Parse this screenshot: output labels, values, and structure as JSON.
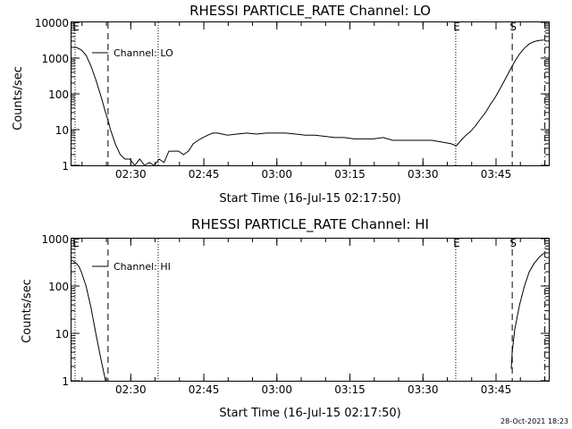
{
  "footer": "28-Oct-2021 18:23",
  "colors": {
    "background": "#ffffff",
    "foreground": "#000000"
  },
  "chart_data": [
    {
      "type": "line",
      "title": "RHESSI PARTICLE_RATE Channel: LO",
      "xlabel": "Start Time (16-Jul-15 02:17:50)",
      "ylabel": "Counts/sec",
      "y_scale": "log",
      "ylim": [
        1,
        10000
      ],
      "x_units": "minutes since 02:17:50",
      "xlim": [
        0,
        98
      ],
      "x_tick_labels": [
        "02:30",
        "02:45",
        "03:00",
        "03:15",
        "03:30",
        "03:45"
      ],
      "x_tick_values": [
        12.17,
        27.17,
        42.17,
        57.17,
        72.17,
        87.17
      ],
      "y_tick_labels": [
        "1",
        "10",
        "100",
        "1000",
        "10000"
      ],
      "y_tick_values": [
        1,
        10,
        100,
        1000,
        10000
      ],
      "grid": false,
      "legend_position": "top-left",
      "series": [
        {
          "name": "Channel: LO",
          "x": [
            0,
            1,
            2,
            3,
            4,
            5,
            6,
            7,
            7.5,
            8,
            9,
            10,
            11,
            12,
            13,
            14,
            15,
            16,
            17,
            18,
            19,
            20,
            21,
            22,
            23,
            24,
            25,
            26,
            27,
            28,
            29,
            30,
            32,
            34,
            36,
            38,
            40,
            42,
            44,
            46,
            48,
            50,
            52,
            54,
            56,
            58,
            60,
            62,
            64,
            66,
            68,
            70,
            72,
            74,
            76,
            78,
            79,
            80,
            81,
            82,
            83,
            84,
            85,
            86,
            87,
            88,
            89,
            90,
            91,
            92,
            93,
            94,
            95,
            96,
            97
          ],
          "y": [
            2000,
            2000,
            1700,
            1200,
            600,
            250,
            90,
            30,
            18,
            10,
            4,
            2,
            1.5,
            1.5,
            1,
            1.5,
            1,
            1.2,
            1,
            1.5,
            1.2,
            2.5,
            2.5,
            2.5,
            2,
            2.5,
            4,
            5,
            6,
            7,
            8,
            8,
            7,
            7.5,
            8,
            7.5,
            8,
            8,
            8,
            7.5,
            7,
            7,
            6.5,
            6,
            6,
            5.5,
            5.5,
            5.5,
            6,
            5,
            5,
            5,
            5,
            5,
            4.5,
            4,
            3.5,
            5,
            7,
            9,
            13,
            20,
            30,
            50,
            80,
            140,
            250,
            450,
            800,
            1300,
            1900,
            2500,
            2900,
            3100,
            3200
          ]
        }
      ],
      "markers": [
        {
          "label": "E",
          "x": 0,
          "style": "dotted"
        },
        {
          "label": "",
          "x": 7.5,
          "style": "dashed"
        },
        {
          "label": "",
          "x": 17.8,
          "style": "dotted"
        },
        {
          "label": "E",
          "x": 78.9,
          "style": "dotted"
        },
        {
          "label": "S",
          "x": 90.5,
          "style": "dashed"
        },
        {
          "label": "",
          "x": 97.2,
          "style": "dashdot"
        }
      ]
    },
    {
      "type": "line",
      "title": "RHESSI PARTICLE_RATE Channel: HI",
      "xlabel": "Start Time (16-Jul-15 02:17:50)",
      "ylabel": "Counts/sec",
      "y_scale": "log",
      "ylim": [
        1,
        1000
      ],
      "x_units": "minutes since 02:17:50",
      "xlim": [
        0,
        98
      ],
      "x_tick_labels": [
        "02:30",
        "02:45",
        "03:00",
        "03:15",
        "03:30",
        "03:45"
      ],
      "x_tick_values": [
        12.17,
        27.17,
        42.17,
        57.17,
        72.17,
        87.17
      ],
      "y_tick_labels": [
        "1",
        "10",
        "100",
        "1000"
      ],
      "y_tick_values": [
        1,
        10,
        100,
        1000
      ],
      "grid": false,
      "legend_position": "top-left",
      "series": [
        {
          "name": "Channel: HI",
          "segments": [
            {
              "x": [
                0,
                0.5,
                1,
                1.5,
                2,
                3,
                4,
                5,
                6,
                7
              ],
              "y": [
                350,
                330,
                300,
                260,
                200,
                100,
                35,
                10,
                3,
                1
              ]
            },
            {
              "x": [
                90.3,
                90.5,
                91,
                92,
                93,
                94,
                95,
                96,
                97
              ],
              "y": [
                1.8,
                4,
                12,
                40,
                100,
                200,
                300,
                400,
                500
              ]
            }
          ]
        }
      ],
      "markers": [
        {
          "label": "E",
          "x": 0,
          "style": "dotted"
        },
        {
          "label": "",
          "x": 7.5,
          "style": "dashed"
        },
        {
          "label": "",
          "x": 17.8,
          "style": "dotted"
        },
        {
          "label": "E",
          "x": 78.9,
          "style": "dotted"
        },
        {
          "label": "S",
          "x": 90.5,
          "style": "dashed"
        },
        {
          "label": "",
          "x": 97.2,
          "style": "dashdot"
        }
      ]
    }
  ]
}
